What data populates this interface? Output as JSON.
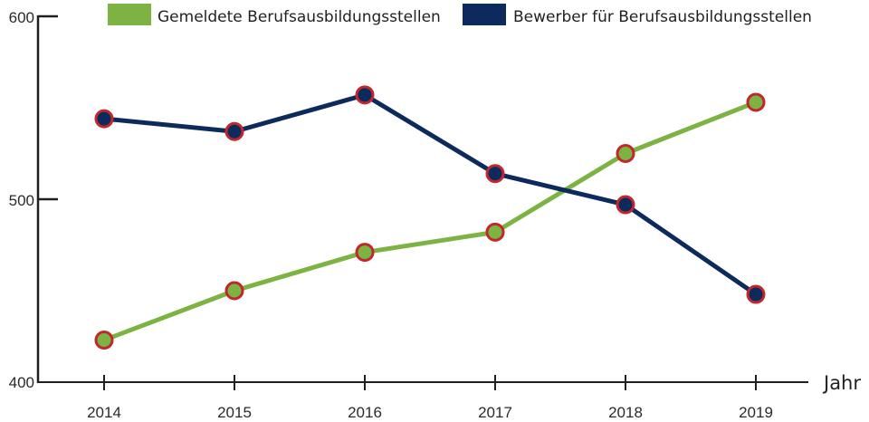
{
  "chart_data": {
    "type": "line",
    "title": "",
    "xlabel": "Jahr",
    "ylabel": "",
    "categories": [
      "2014",
      "2015",
      "2016",
      "2017",
      "2018",
      "2019"
    ],
    "ylim": [
      400,
      600
    ],
    "yticks": [
      "400",
      "500",
      "600"
    ],
    "grid": false,
    "legend_position": "top",
    "series": [
      {
        "name": "Gemeldete Berufsausbildungsstellen",
        "color": "#7cb342",
        "marker_edge": "#c0282d",
        "values": [
          423,
          450,
          471,
          482,
          525,
          553
        ]
      },
      {
        "name": "Bewerber für Berufsausbildungsstellen",
        "color": "#0d2a5c",
        "marker_edge": "#c0282d",
        "values": [
          544,
          537,
          557,
          514,
          497,
          448
        ]
      }
    ]
  }
}
